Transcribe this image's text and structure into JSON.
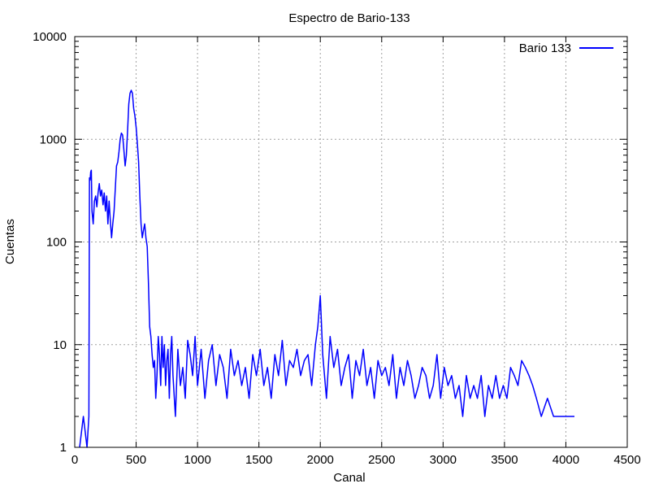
{
  "chart_data": {
    "type": "line",
    "title": "Espectro de Bario-133",
    "xlabel": "Canal",
    "ylabel": "Cuentas",
    "xlim": [
      0,
      4500
    ],
    "ylim": [
      1,
      10000
    ],
    "yscale": "log",
    "grid": true,
    "legend_position": "top-right",
    "x_ticks": [
      "0",
      "500",
      "1000",
      "1500",
      "2000",
      "2500",
      "3000",
      "3500",
      "4000",
      "4500"
    ],
    "y_ticks": [
      "1",
      "10",
      "100",
      "1000",
      "10000"
    ],
    "series": [
      {
        "name": "Bario 133",
        "color": "#0000ff",
        "x": [
          40,
          70,
          100,
          115,
          120,
          125,
          130,
          135,
          140,
          150,
          160,
          170,
          180,
          190,
          200,
          210,
          220,
          230,
          240,
          250,
          260,
          270,
          280,
          290,
          300,
          310,
          320,
          330,
          340,
          350,
          360,
          370,
          380,
          390,
          400,
          410,
          420,
          430,
          440,
          450,
          460,
          470,
          480,
          490,
          500,
          510,
          520,
          530,
          540,
          550,
          560,
          570,
          580,
          590,
          600,
          610,
          620,
          630,
          640,
          650,
          660,
          670,
          680,
          690,
          700,
          710,
          720,
          730,
          740,
          750,
          760,
          770,
          780,
          790,
          800,
          820,
          840,
          860,
          880,
          900,
          920,
          940,
          960,
          980,
          1000,
          1030,
          1060,
          1090,
          1120,
          1150,
          1180,
          1210,
          1240,
          1270,
          1300,
          1330,
          1360,
          1390,
          1420,
          1450,
          1480,
          1510,
          1540,
          1570,
          1600,
          1630,
          1660,
          1690,
          1720,
          1750,
          1780,
          1810,
          1840,
          1870,
          1900,
          1930,
          1960,
          1980,
          2000,
          2020,
          2050,
          2080,
          2110,
          2140,
          2170,
          2200,
          2230,
          2260,
          2290,
          2320,
          2350,
          2380,
          2410,
          2440,
          2470,
          2500,
          2530,
          2560,
          2590,
          2620,
          2650,
          2680,
          2710,
          2740,
          2770,
          2800,
          2830,
          2860,
          2890,
          2920,
          2950,
          2980,
          3010,
          3040,
          3070,
          3100,
          3130,
          3160,
          3190,
          3220,
          3250,
          3280,
          3310,
          3340,
          3370,
          3400,
          3430,
          3460,
          3490,
          3520,
          3550,
          3580,
          3610,
          3640,
          3670,
          3700,
          3730,
          3760,
          3800,
          3850,
          3900,
          3950,
          4000,
          4070
        ],
        "y": [
          1,
          2,
          1,
          2,
          420,
          400,
          480,
          500,
          200,
          150,
          250,
          280,
          220,
          300,
          370,
          280,
          320,
          230,
          300,
          200,
          280,
          150,
          250,
          160,
          110,
          150,
          200,
          330,
          550,
          600,
          750,
          1000,
          1150,
          1100,
          800,
          550,
          700,
          1200,
          2200,
          2800,
          3000,
          2800,
          2000,
          1700,
          1300,
          900,
          600,
          280,
          150,
          110,
          130,
          150,
          110,
          90,
          40,
          15,
          12,
          8,
          6,
          7,
          3,
          5,
          12,
          8,
          4,
          12,
          6,
          10,
          4,
          7,
          9,
          3,
          8,
          12,
          5,
          2,
          9,
          4,
          6,
          3,
          11,
          8,
          5,
          12,
          4,
          9,
          3,
          7,
          10,
          4,
          8,
          6,
          3,
          9,
          5,
          7,
          4,
          6,
          3,
          8,
          5,
          9,
          4,
          6,
          3,
          8,
          5,
          11,
          4,
          7,
          6,
          9,
          5,
          7,
          8,
          4,
          10,
          15,
          30,
          8,
          3,
          12,
          6,
          9,
          4,
          6,
          8,
          3,
          7,
          5,
          9,
          4,
          6,
          3,
          7,
          5,
          6,
          4,
          8,
          3,
          6,
          4,
          7,
          5,
          3,
          4,
          6,
          5,
          3,
          4,
          8,
          3,
          6,
          4,
          5,
          3,
          4,
          2,
          5,
          3,
          4,
          3,
          5,
          2,
          4,
          3,
          5,
          3,
          4,
          3,
          6,
          5,
          4,
          7,
          6,
          5,
          4,
          3,
          2,
          3,
          2,
          2,
          2,
          2
        ]
      }
    ]
  }
}
